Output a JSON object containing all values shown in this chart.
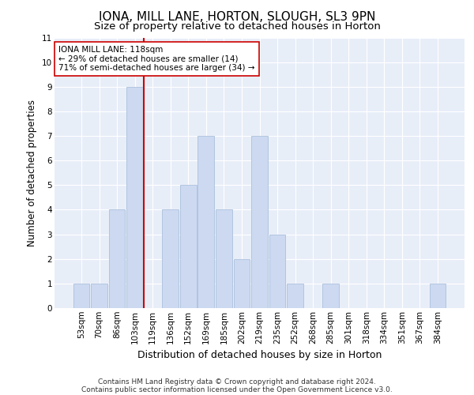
{
  "title1": "IONA, MILL LANE, HORTON, SLOUGH, SL3 9PN",
  "title2": "Size of property relative to detached houses in Horton",
  "xlabel": "Distribution of detached houses by size in Horton",
  "ylabel": "Number of detached properties",
  "categories": [
    "53sqm",
    "70sqm",
    "86sqm",
    "103sqm",
    "119sqm",
    "136sqm",
    "152sqm",
    "169sqm",
    "185sqm",
    "202sqm",
    "219sqm",
    "235sqm",
    "252sqm",
    "268sqm",
    "285sqm",
    "301sqm",
    "318sqm",
    "334sqm",
    "351sqm",
    "367sqm",
    "384sqm"
  ],
  "values": [
    1,
    1,
    4,
    9,
    0,
    4,
    5,
    7,
    4,
    2,
    7,
    3,
    1,
    0,
    1,
    0,
    0,
    0,
    0,
    0,
    1
  ],
  "bar_color": "#ccd9f0",
  "bar_edge_color": "#a0b8d8",
  "ref_line_color": "#cc0000",
  "annotation_text": "IONA MILL LANE: 118sqm\n← 29% of detached houses are smaller (14)\n71% of semi-detached houses are larger (34) →",
  "annotation_box_color": "#ffffff",
  "annotation_box_edge": "#cc0000",
  "ylim": [
    0,
    11
  ],
  "yticks": [
    0,
    1,
    2,
    3,
    4,
    5,
    6,
    7,
    8,
    9,
    10,
    11
  ],
  "footnote1": "Contains HM Land Registry data © Crown copyright and database right 2024.",
  "footnote2": "Contains public sector information licensed under the Open Government Licence v3.0.",
  "background_color": "#e8eef8",
  "grid_color": "#ffffff",
  "title1_fontsize": 11,
  "title2_fontsize": 9.5,
  "xlabel_fontsize": 9,
  "ylabel_fontsize": 8.5,
  "tick_fontsize": 7.5,
  "annot_fontsize": 7.5,
  "footnote_fontsize": 6.5
}
